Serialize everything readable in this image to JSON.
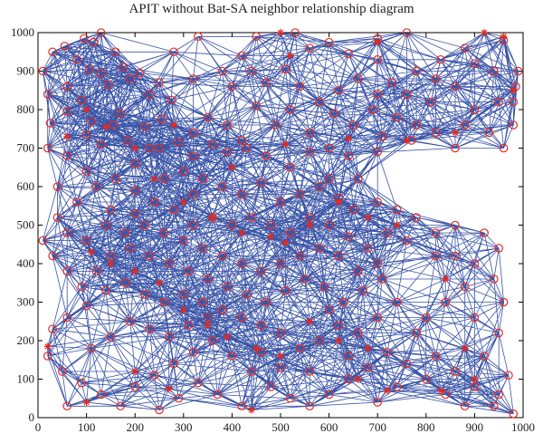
{
  "chart_data": {
    "type": "scatter",
    "title": "APIT without Bat-SA neighbor relationship diagram",
    "xlabel": "",
    "ylabel": "",
    "xlim": [
      0,
      1000
    ],
    "ylim": [
      0,
      1000
    ],
    "x_ticks": [
      "0",
      "100",
      "200",
      "300",
      "400",
      "500",
      "600",
      "700",
      "800",
      "900",
      "1000"
    ],
    "y_ticks": [
      "0",
      "100",
      "200",
      "300",
      "400",
      "500",
      "600",
      "700",
      "800",
      "900",
      "1000"
    ],
    "grid": false,
    "colors": {
      "edges": "#3a55a8",
      "nodes": "#e8281e",
      "axes": "#000000"
    },
    "edge_rule": "nodes within communication range are connected by a line",
    "series": [
      {
        "marker": "circle",
        "points": [
          [
            10,
            900
          ],
          [
            30,
            950
          ],
          [
            55,
            965
          ],
          [
            80,
            930
          ],
          [
            95,
            985
          ],
          [
            115,
            975
          ],
          [
            130,
            1000
          ],
          [
            60,
            860
          ],
          [
            20,
            840
          ],
          [
            130,
            895
          ],
          [
            175,
            910
          ],
          [
            190,
            880
          ],
          [
            145,
            865
          ],
          [
            105,
            905
          ],
          [
            90,
            825
          ],
          [
            25,
            765
          ],
          [
            60,
            795
          ],
          [
            110,
            770
          ],
          [
            170,
            790
          ],
          [
            220,
            755
          ],
          [
            255,
            775
          ],
          [
            275,
            825
          ],
          [
            230,
            840
          ],
          [
            210,
            895
          ],
          [
            280,
            950
          ],
          [
            160,
            950
          ],
          [
            100,
            735
          ],
          [
            130,
            710
          ],
          [
            155,
            760
          ],
          [
            185,
            720
          ],
          [
            230,
            700
          ],
          [
            290,
            715
          ],
          [
            320,
            740
          ],
          [
            350,
            780
          ],
          [
            390,
            760
          ],
          [
            420,
            720
          ],
          [
            450,
            810
          ],
          [
            470,
            870
          ],
          [
            510,
            905
          ],
          [
            560,
            960
          ],
          [
            600,
            975
          ],
          [
            640,
            945
          ],
          [
            700,
            985
          ],
          [
            760,
            1000
          ],
          [
            700,
            930
          ],
          [
            730,
            870
          ],
          [
            660,
            880
          ],
          [
            620,
            850
          ],
          [
            580,
            820
          ],
          [
            540,
            860
          ],
          [
            520,
            800
          ],
          [
            490,
            760
          ],
          [
            560,
            740
          ],
          [
            610,
            790
          ],
          [
            650,
            760
          ],
          [
            690,
            800
          ],
          [
            740,
            780
          ],
          [
            780,
            760
          ],
          [
            810,
            820
          ],
          [
            860,
            860
          ],
          [
            900,
            800
          ],
          [
            950,
            820
          ],
          [
            980,
            760
          ],
          [
            930,
            740
          ],
          [
            880,
            760
          ],
          [
            820,
            740
          ],
          [
            770,
            720
          ],
          [
            710,
            730
          ],
          [
            700,
            690
          ],
          [
            640,
            680
          ],
          [
            600,
            700
          ],
          [
            560,
            690
          ],
          [
            520,
            650
          ],
          [
            470,
            680
          ],
          [
            430,
            700
          ],
          [
            390,
            690
          ],
          [
            360,
            710
          ],
          [
            320,
            680
          ],
          [
            300,
            640
          ],
          [
            340,
            620
          ],
          [
            380,
            600
          ],
          [
            420,
            580
          ],
          [
            460,
            610
          ],
          [
            500,
            560
          ],
          [
            540,
            580
          ],
          [
            580,
            600
          ],
          [
            620,
            570
          ],
          [
            660,
            620
          ],
          [
            700,
            560
          ],
          [
            740,
            540
          ],
          [
            780,
            520
          ],
          [
            820,
            480
          ],
          [
            860,
            500
          ],
          [
            920,
            480
          ],
          [
            950,
            440
          ],
          [
            900,
            400
          ],
          [
            880,
            340
          ],
          [
            840,
            300
          ],
          [
            800,
            260
          ],
          [
            780,
            220
          ],
          [
            820,
            160
          ],
          [
            860,
            120
          ],
          [
            900,
            80
          ],
          [
            950,
            60
          ],
          [
            970,
            110
          ],
          [
            920,
            160
          ],
          [
            950,
            220
          ],
          [
            900,
            260
          ],
          [
            960,
            300
          ],
          [
            940,
            360
          ],
          [
            860,
            420
          ],
          [
            820,
            420
          ],
          [
            760,
            460
          ],
          [
            720,
            480
          ],
          [
            680,
            440
          ],
          [
            640,
            470
          ],
          [
            600,
            500
          ],
          [
            560,
            520
          ],
          [
            520,
            480
          ],
          [
            480,
            500
          ],
          [
            440,
            520
          ],
          [
            400,
            500
          ],
          [
            360,
            520
          ],
          [
            320,
            500
          ],
          [
            280,
            540
          ],
          [
            240,
            560
          ],
          [
            200,
            590
          ],
          [
            160,
            620
          ],
          [
            120,
            600
          ],
          [
            80,
            560
          ],
          [
            40,
            520
          ],
          [
            10,
            460
          ],
          [
            30,
            420
          ],
          [
            60,
            380
          ],
          [
            90,
            340
          ],
          [
            120,
            380
          ],
          [
            150,
            420
          ],
          [
            190,
            440
          ],
          [
            230,
            420
          ],
          [
            270,
            400
          ],
          [
            310,
            380
          ],
          [
            350,
            360
          ],
          [
            390,
            340
          ],
          [
            430,
            320
          ],
          [
            470,
            300
          ],
          [
            510,
            330
          ],
          [
            550,
            360
          ],
          [
            590,
            340
          ],
          [
            630,
            300
          ],
          [
            670,
            330
          ],
          [
            710,
            360
          ],
          [
            740,
            300
          ],
          [
            700,
            260
          ],
          [
            660,
            220
          ],
          [
            620,
            240
          ],
          [
            580,
            200
          ],
          [
            540,
            180
          ],
          [
            500,
            220
          ],
          [
            460,
            240
          ],
          [
            420,
            260
          ],
          [
            380,
            280
          ],
          [
            340,
            300
          ],
          [
            300,
            320
          ],
          [
            260,
            300
          ],
          [
            220,
            320
          ],
          [
            180,
            350
          ],
          [
            140,
            330
          ],
          [
            100,
            290
          ],
          [
            60,
            260
          ],
          [
            30,
            230
          ],
          [
            20,
            160
          ],
          [
            50,
            120
          ],
          [
            90,
            90
          ],
          [
            130,
            60
          ],
          [
            170,
            30
          ],
          [
            200,
            80
          ],
          [
            240,
            110
          ],
          [
            280,
            140
          ],
          [
            320,
            170
          ],
          [
            360,
            200
          ],
          [
            400,
            160
          ],
          [
            440,
            120
          ],
          [
            480,
            80
          ],
          [
            520,
            50
          ],
          [
            560,
            30
          ],
          [
            600,
            60
          ],
          [
            640,
            100
          ],
          [
            680,
            130
          ],
          [
            720,
            170
          ],
          [
            760,
            140
          ],
          [
            800,
            100
          ],
          [
            840,
            60
          ],
          [
            880,
            30
          ],
          [
            940,
            30
          ],
          [
            980,
            10
          ],
          [
            420,
            30
          ],
          [
            370,
            60
          ],
          [
            330,
            90
          ],
          [
            290,
            50
          ],
          [
            250,
            20
          ],
          [
            60,
            30
          ],
          [
            110,
            180
          ],
          [
            150,
            210
          ],
          [
            190,
            250
          ],
          [
            230,
            230
          ],
          [
            270,
            210
          ],
          [
            310,
            240
          ],
          [
            350,
            260
          ],
          [
            700,
            40
          ],
          [
            740,
            80
          ],
          [
            560,
            120
          ],
          [
            500,
            130
          ],
          [
            460,
            170
          ],
          [
            640,
            160
          ],
          [
            600,
            280
          ],
          [
            700,
            400
          ],
          [
            660,
            380
          ],
          [
            620,
            420
          ],
          [
            580,
            440
          ],
          [
            540,
            420
          ],
          [
            500,
            400
          ],
          [
            460,
            380
          ],
          [
            420,
            400
          ],
          [
            380,
            420
          ],
          [
            340,
            440
          ],
          [
            300,
            460
          ],
          [
            260,
            480
          ],
          [
            220,
            500
          ],
          [
            180,
            480
          ],
          [
            140,
            500
          ],
          [
            100,
            460
          ],
          [
            60,
            480
          ],
          [
            100,
            640
          ],
          [
            60,
            680
          ],
          [
            200,
            660
          ],
          [
            260,
            620
          ],
          [
            320,
            580
          ],
          [
            250,
            870
          ],
          [
            320,
            880
          ],
          [
            380,
            900
          ],
          [
            420,
            940
          ],
          [
            450,
            990
          ],
          [
            530,
            1000
          ],
          [
            780,
            900
          ],
          [
            830,
            930
          ],
          [
            880,
            960
          ],
          [
            960,
            980
          ],
          [
            990,
            900
          ],
          [
            985,
            860
          ],
          [
            940,
            900
          ],
          [
            900,
            920
          ],
          [
            820,
            880
          ],
          [
            760,
            840
          ],
          [
            700,
            840
          ],
          [
            860,
            700
          ],
          [
            960,
            700
          ],
          [
            980,
            820
          ],
          [
            150,
            540
          ],
          [
            200,
            530
          ],
          [
            40,
            600
          ],
          [
            20,
            700
          ],
          [
            250,
            700
          ],
          [
            400,
            860
          ],
          [
            440,
            900
          ],
          [
            330,
            990
          ],
          [
            600,
            620
          ],
          [
            650,
            540
          ]
        ]
      },
      {
        "marker": "asterisk",
        "points": [
          [
            500,
            1000
          ],
          [
            920,
            1000
          ],
          [
            960,
            990
          ],
          [
            700,
            975
          ],
          [
            520,
            940
          ],
          [
            100,
            800
          ],
          [
            140,
            755
          ],
          [
            60,
            730
          ],
          [
            280,
            760
          ],
          [
            510,
            710
          ],
          [
            640,
            725
          ],
          [
            760,
            720
          ],
          [
            860,
            740
          ],
          [
            980,
            850
          ],
          [
            300,
            560
          ],
          [
            360,
            520
          ],
          [
            420,
            480
          ],
          [
            480,
            470
          ],
          [
            510,
            455
          ],
          [
            560,
            500
          ],
          [
            620,
            560
          ],
          [
            680,
            520
          ],
          [
            740,
            500
          ],
          [
            110,
            430
          ],
          [
            150,
            400
          ],
          [
            200,
            380
          ],
          [
            250,
            350
          ],
          [
            300,
            280
          ],
          [
            350,
            240
          ],
          [
            390,
            210
          ],
          [
            450,
            180
          ],
          [
            500,
            160
          ],
          [
            560,
            250
          ],
          [
            620,
            200
          ],
          [
            680,
            180
          ],
          [
            840,
            360
          ],
          [
            880,
            180
          ],
          [
            900,
            100
          ],
          [
            20,
            185
          ],
          [
            100,
            40
          ],
          [
            200,
            120
          ],
          [
            270,
            75
          ],
          [
            660,
            100
          ],
          [
            720,
            70
          ],
          [
            830,
            70
          ],
          [
            440,
            20
          ],
          [
            400,
            650
          ],
          [
            240,
            620
          ],
          [
            200,
            700
          ]
        ]
      }
    ]
  }
}
